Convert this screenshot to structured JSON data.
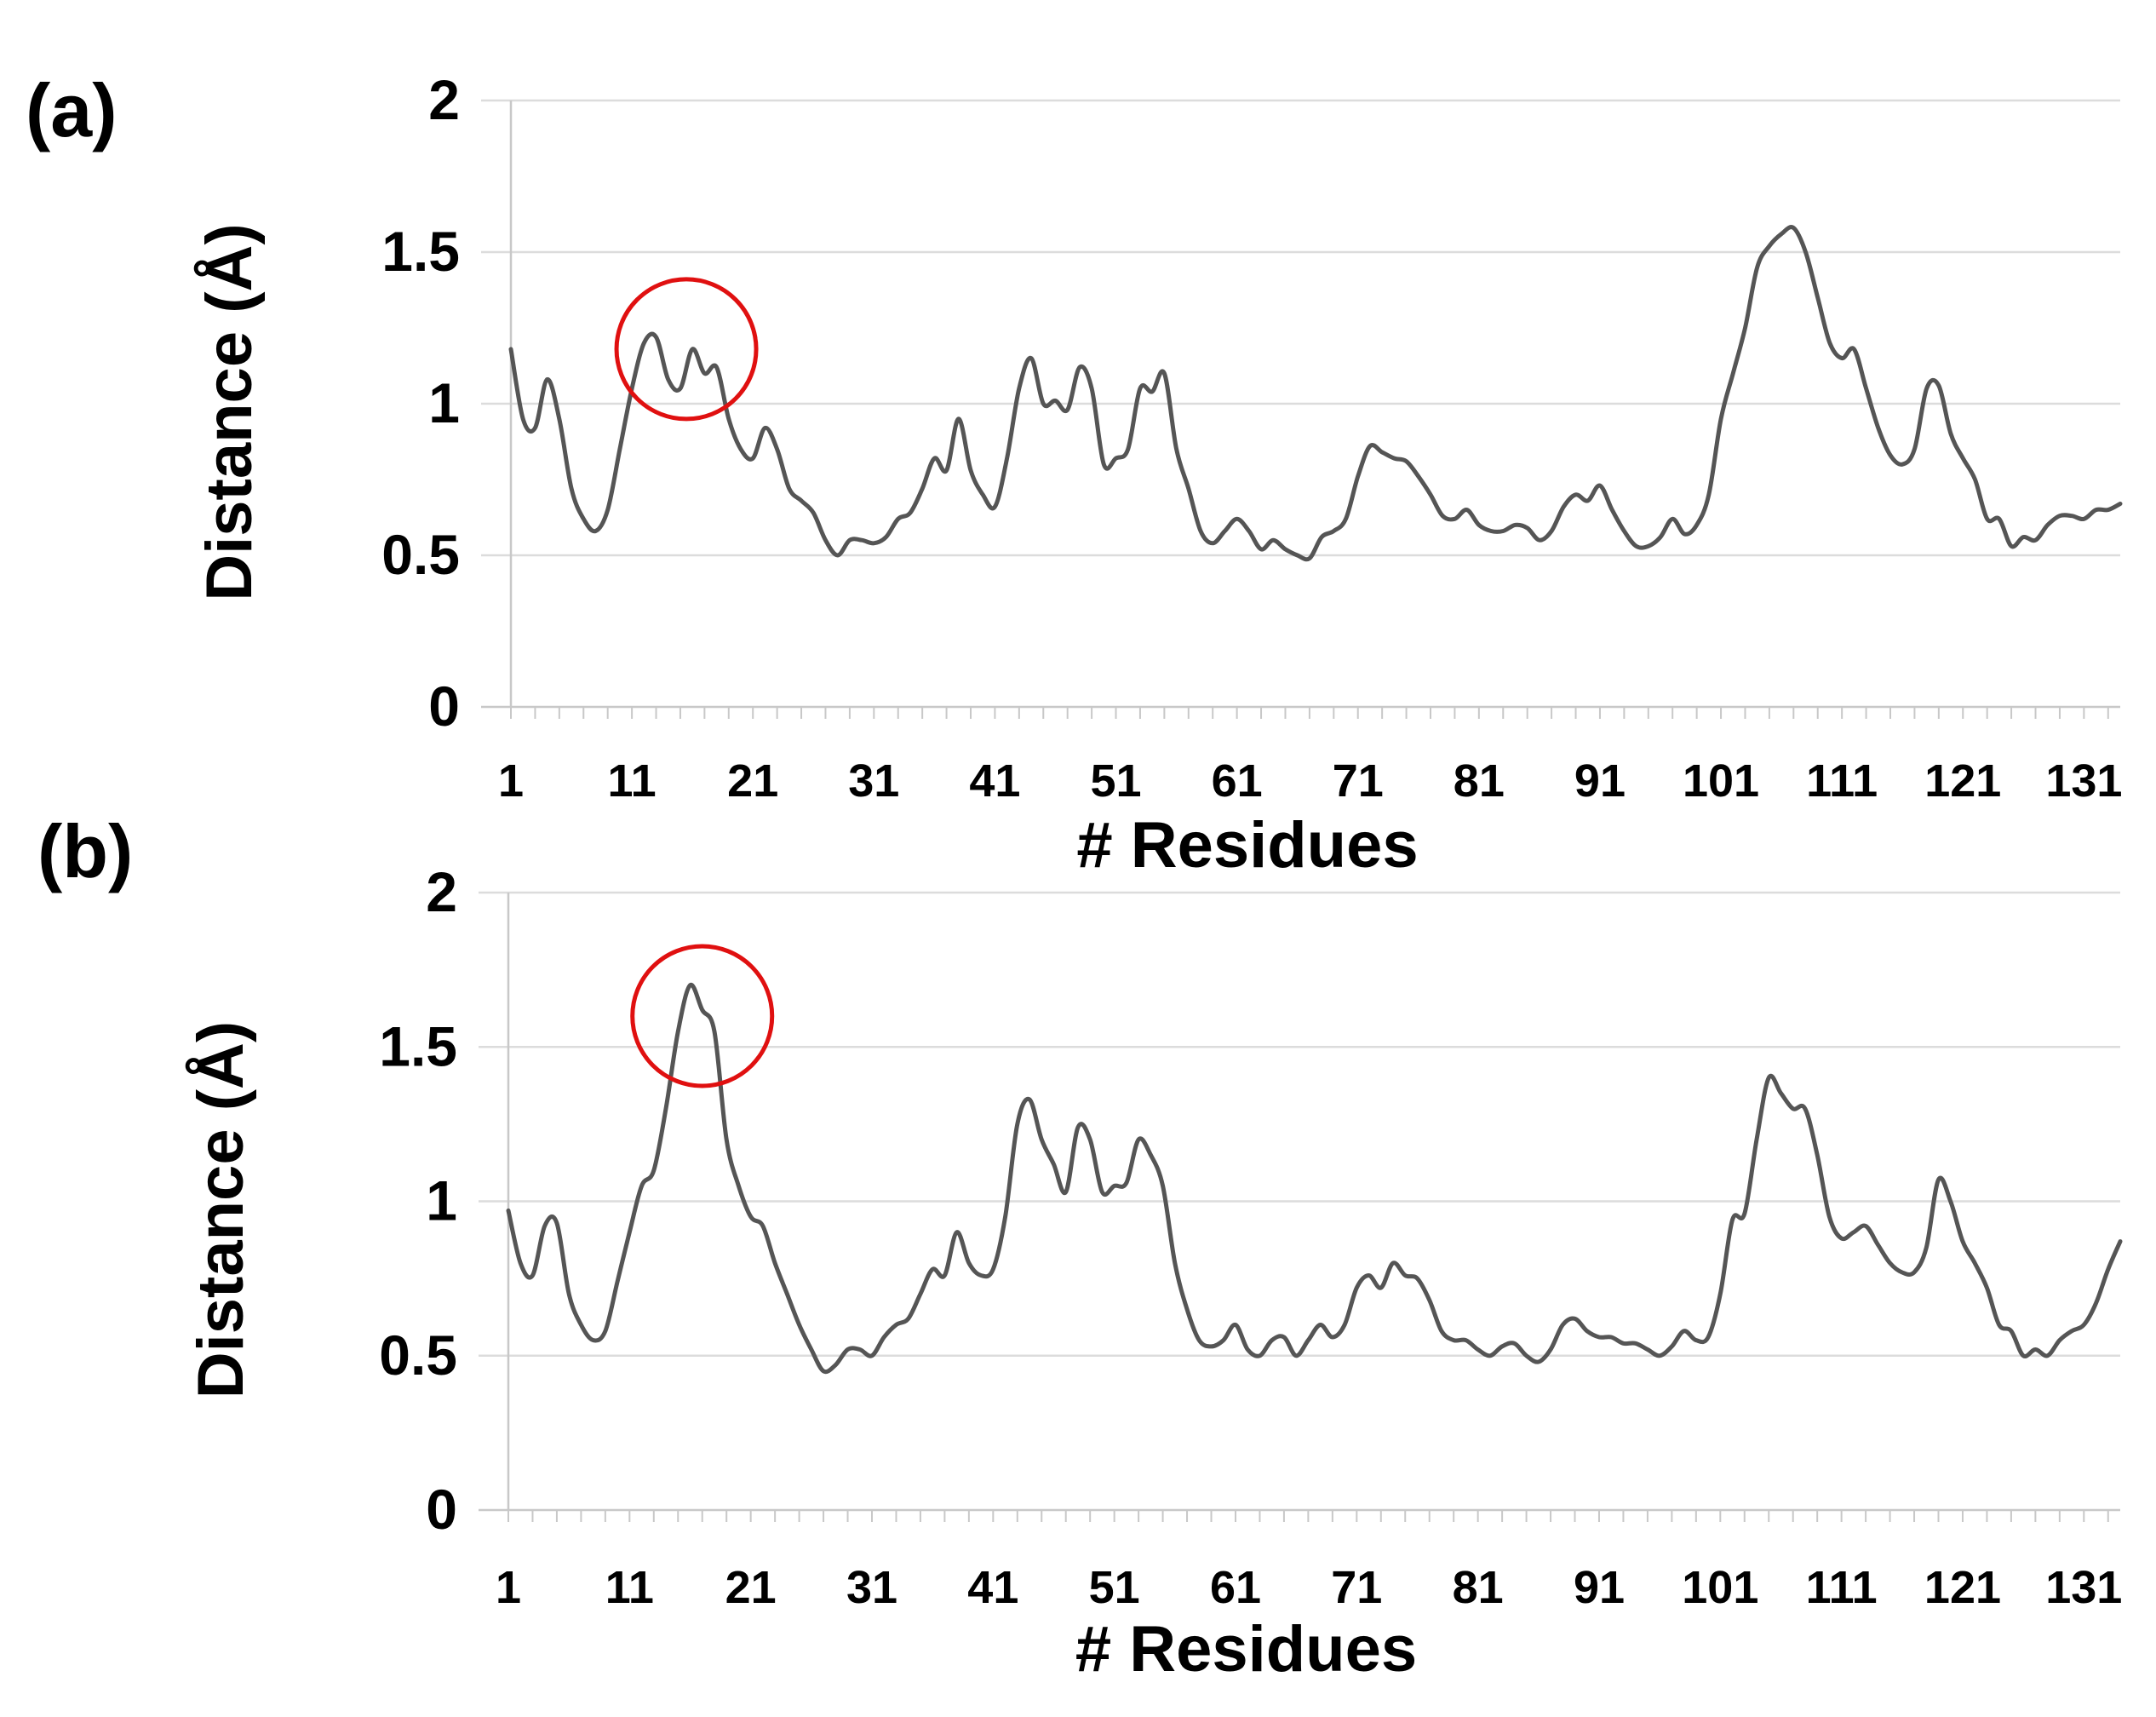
{
  "chart_data": [
    {
      "type": "line",
      "panel_label": "(a)",
      "xlabel": "# Residues",
      "ylabel": "Distance (Å)",
      "ylim": [
        0,
        2
      ],
      "yticks": [
        "0",
        "0.5",
        "1",
        "1.5",
        "2"
      ],
      "xlim": [
        1,
        134
      ],
      "xticks": [
        "1",
        "11",
        "21",
        "31",
        "41",
        "51",
        "61",
        "71",
        "81",
        "91",
        "101",
        "111",
        "121",
        "131"
      ],
      "grid": true,
      "line_color": "#555555",
      "highlight_color": "#e01010",
      "highlight": {
        "x": 15.5,
        "y": 1.18,
        "label": ""
      },
      "series": [
        {
          "name": "",
          "x": [
            1,
            2,
            3,
            4,
            5,
            6,
            7,
            8,
            9,
            10,
            11,
            12,
            13,
            14,
            15,
            16,
            17,
            18,
            19,
            20,
            21,
            22,
            23,
            24,
            25,
            26,
            27,
            28,
            29,
            30,
            31,
            32,
            33,
            34,
            35,
            36,
            37,
            38,
            39,
            40,
            41,
            42,
            43,
            44,
            45,
            46,
            47,
            48,
            49,
            50,
            51,
            52,
            53,
            54,
            55,
            56,
            57,
            58,
            59,
            60,
            61,
            62,
            63,
            64,
            65,
            66,
            67,
            68,
            69,
            70,
            71,
            72,
            73,
            74,
            75,
            76,
            77,
            78,
            79,
            80,
            81,
            82,
            83,
            84,
            85,
            86,
            87,
            88,
            89,
            90,
            91,
            92,
            93,
            94,
            95,
            96,
            97,
            98,
            99,
            100,
            101,
            102,
            103,
            104,
            105,
            106,
            107,
            108,
            109,
            110,
            111,
            112,
            113,
            114,
            115,
            116,
            117,
            118,
            119,
            120,
            121,
            122,
            123,
            124,
            125,
            126,
            127,
            128,
            129,
            130,
            131,
            132,
            133,
            134
          ],
          "values": [
            1.18,
            0.95,
            0.92,
            1.08,
            0.95,
            0.72,
            0.62,
            0.58,
            0.65,
            0.85,
            1.05,
            1.2,
            1.22,
            1.08,
            1.05,
            1.18,
            1.1,
            1.12,
            0.95,
            0.85,
            0.82,
            0.92,
            0.85,
            0.72,
            0.68,
            0.64,
            0.55,
            0.5,
            0.55,
            0.55,
            0.54,
            0.56,
            0.62,
            0.64,
            0.72,
            0.82,
            0.78,
            0.95,
            0.78,
            0.7,
            0.66,
            0.82,
            1.05,
            1.15,
            1.0,
            1.01,
            0.98,
            1.12,
            1.05,
            0.8,
            0.82,
            0.85,
            1.05,
            1.04,
            1.1,
            0.85,
            0.72,
            0.58,
            0.54,
            0.58,
            0.62,
            0.58,
            0.52,
            0.55,
            0.52,
            0.5,
            0.49,
            0.56,
            0.58,
            0.62,
            0.76,
            0.86,
            0.84,
            0.82,
            0.81,
            0.76,
            0.7,
            0.63,
            0.62,
            0.65,
            0.6,
            0.58,
            0.58,
            0.6,
            0.59,
            0.55,
            0.58,
            0.66,
            0.7,
            0.68,
            0.73,
            0.65,
            0.58,
            0.53,
            0.53,
            0.56,
            0.62,
            0.57,
            0.6,
            0.7,
            0.95,
            1.1,
            1.25,
            1.45,
            1.52,
            1.56,
            1.58,
            1.5,
            1.35,
            1.2,
            1.15,
            1.18,
            1.05,
            0.92,
            0.83,
            0.8,
            0.85,
            1.05,
            1.06,
            0.9,
            0.82,
            0.75,
            0.62,
            0.62,
            0.53,
            0.56,
            0.55,
            0.6,
            0.63,
            0.63,
            0.62,
            0.65,
            0.65,
            0.67
          ]
        }
      ]
    },
    {
      "type": "line",
      "panel_label": "(b)",
      "xlabel": "# Residues",
      "ylabel": "Distance (Å)",
      "ylim": [
        0,
        2
      ],
      "yticks": [
        "0",
        "0.5",
        "1",
        "1.5",
        "2"
      ],
      "xlim": [
        1,
        134
      ],
      "xticks": [
        "1",
        "11",
        "21",
        "31",
        "41",
        "51",
        "61",
        "71",
        "81",
        "91",
        "101",
        "111",
        "121",
        "131"
      ],
      "grid": true,
      "line_color": "#555555",
      "highlight_color": "#e01010",
      "highlight": {
        "x": 17,
        "y": 1.6,
        "label": ""
      },
      "series": [
        {
          "name": "",
          "x": [
            1,
            2,
            3,
            4,
            5,
            6,
            7,
            8,
            9,
            10,
            11,
            12,
            13,
            14,
            15,
            16,
            17,
            18,
            19,
            20,
            21,
            22,
            23,
            24,
            25,
            26,
            27,
            28,
            29,
            30,
            31,
            32,
            33,
            34,
            35,
            36,
            37,
            38,
            39,
            40,
            41,
            42,
            43,
            44,
            45,
            46,
            47,
            48,
            49,
            50,
            51,
            52,
            53,
            54,
            55,
            56,
            57,
            58,
            59,
            60,
            61,
            62,
            63,
            64,
            65,
            66,
            67,
            68,
            69,
            70,
            71,
            72,
            73,
            74,
            75,
            76,
            77,
            78,
            79,
            80,
            81,
            82,
            83,
            84,
            85,
            86,
            87,
            88,
            89,
            90,
            91,
            92,
            93,
            94,
            95,
            96,
            97,
            98,
            99,
            100,
            101,
            102,
            103,
            104,
            105,
            106,
            107,
            108,
            109,
            110,
            111,
            112,
            113,
            114,
            115,
            116,
            117,
            118,
            119,
            120,
            121,
            122,
            123,
            124,
            125,
            126,
            127,
            128,
            129,
            130,
            131,
            132,
            133,
            134
          ],
          "values": [
            0.97,
            0.8,
            0.76,
            0.92,
            0.93,
            0.7,
            0.6,
            0.55,
            0.58,
            0.74,
            0.9,
            1.05,
            1.1,
            1.3,
            1.55,
            1.7,
            1.62,
            1.55,
            1.2,
            1.05,
            0.95,
            0.92,
            0.8,
            0.7,
            0.6,
            0.52,
            0.45,
            0.47,
            0.52,
            0.52,
            0.5,
            0.56,
            0.6,
            0.62,
            0.7,
            0.78,
            0.76,
            0.9,
            0.8,
            0.76,
            0.78,
            0.95,
            1.25,
            1.33,
            1.2,
            1.12,
            1.03,
            1.24,
            1.2,
            1.03,
            1.05,
            1.06,
            1.2,
            1.15,
            1.05,
            0.8,
            0.65,
            0.55,
            0.53,
            0.55,
            0.6,
            0.52,
            0.5,
            0.55,
            0.56,
            0.5,
            0.55,
            0.6,
            0.56,
            0.6,
            0.72,
            0.76,
            0.72,
            0.8,
            0.76,
            0.75,
            0.68,
            0.58,
            0.55,
            0.55,
            0.52,
            0.5,
            0.53,
            0.54,
            0.5,
            0.48,
            0.52,
            0.6,
            0.62,
            0.58,
            0.56,
            0.56,
            0.54,
            0.54,
            0.52,
            0.5,
            0.53,
            0.58,
            0.55,
            0.56,
            0.7,
            0.94,
            0.96,
            1.2,
            1.4,
            1.35,
            1.3,
            1.3,
            1.15,
            0.95,
            0.88,
            0.9,
            0.92,
            0.86,
            0.8,
            0.77,
            0.77,
            0.85,
            1.07,
            1.0,
            0.87,
            0.8,
            0.72,
            0.6,
            0.58,
            0.5,
            0.52,
            0.5,
            0.55,
            0.58,
            0.6,
            0.67,
            0.78,
            0.87
          ]
        }
      ]
    }
  ]
}
